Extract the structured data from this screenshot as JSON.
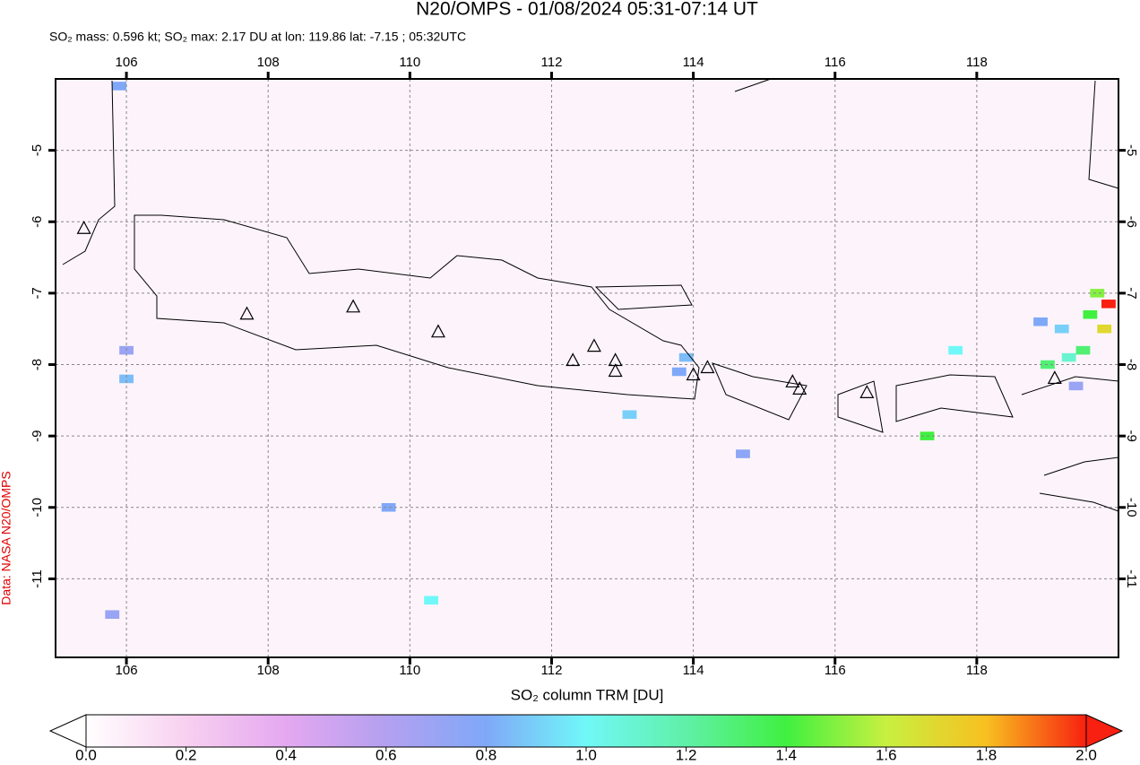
{
  "chart_data": {
    "type": "map",
    "title": "N20/OMPS - 01/08/2024 05:31-07:14 UT",
    "subtitle": "SO₂ mass: 0.596 kt; SO₂ max: 2.17 DU at lon: 119.86 lat: -7.15 ; 05:32UTC",
    "credit": "Data: NASA N20/OMPS",
    "colorbar_label": "SO₂ column TRM [DU]",
    "xlim": [
      105,
      120
    ],
    "ylim": [
      -12.1,
      -4
    ],
    "xticks": [
      106,
      108,
      110,
      112,
      114,
      116,
      118
    ],
    "yticks": [
      -5,
      -6,
      -7,
      -8,
      -9,
      -10,
      -11
    ],
    "grid": true,
    "clim": [
      0,
      2
    ],
    "cticks": [
      {
        "value": 0,
        "label": "0.0"
      },
      {
        "value": 0.2,
        "label": "0.2"
      },
      {
        "value": 0.4,
        "label": "0.4"
      },
      {
        "value": 0.6,
        "label": "0.6"
      },
      {
        "value": 0.8,
        "label": "0.8"
      },
      {
        "value": 1,
        "label": "1.0"
      },
      {
        "value": 1.2,
        "label": "1.2"
      },
      {
        "value": 1.4,
        "label": "1.4"
      },
      {
        "value": 1.6,
        "label": "1.6"
      },
      {
        "value": 1.8,
        "label": "1.8"
      },
      {
        "value": 2,
        "label": "2.0"
      }
    ],
    "colormap": [
      {
        "value": 0,
        "color": "#ffffff"
      },
      {
        "value": 0.2,
        "color": "#f8d0f0"
      },
      {
        "value": 0.4,
        "color": "#e4a8f0"
      },
      {
        "value": 0.6,
        "color": "#b4a0f0"
      },
      {
        "value": 0.8,
        "color": "#80a8f8"
      },
      {
        "value": 1,
        "color": "#70f8f8"
      },
      {
        "value": 1.2,
        "color": "#60f0a8"
      },
      {
        "value": 1.4,
        "color": "#40f040"
      },
      {
        "value": 1.6,
        "color": "#c8f040"
      },
      {
        "value": 1.8,
        "color": "#f8c020"
      },
      {
        "value": 2,
        "color": "#f82010"
      }
    ],
    "pixels": {
      "lon": [
        119.86,
        119.7,
        119.8,
        119.6,
        119.5,
        119.0,
        119.3,
        119.2,
        118.9,
        119.4,
        117.3,
        117.7,
        113.9,
        113.8,
        113.1,
        110.3,
        105.9,
        106.0,
        106.0,
        109.7,
        105.8,
        114.7
      ],
      "lat": [
        -7.15,
        -7.0,
        -7.5,
        -7.3,
        -7.8,
        -8.0,
        -7.9,
        -7.5,
        -7.4,
        -8.3,
        -9.0,
        -7.8,
        -7.9,
        -8.1,
        -8.7,
        -11.3,
        -4.1,
        -7.8,
        -8.2,
        -10.0,
        -11.5,
        -9.25
      ],
      "values": [
        2.17,
        1.5,
        1.7,
        1.4,
        1.3,
        1.3,
        1.1,
        0.9,
        0.8,
        0.7,
        1.4,
        1.0,
        0.85,
        0.8,
        0.9,
        1.0,
        0.8,
        0.7,
        0.85,
        0.8,
        0.7,
        0.75
      ]
    },
    "volcanoes": {
      "lon": [
        105.4,
        107.7,
        109.2,
        110.4,
        112.3,
        112.6,
        112.9,
        112.9,
        114.0,
        114.2,
        115.4,
        115.5,
        116.45,
        119.1
      ],
      "lat": [
        -6.1,
        -7.3,
        -7.2,
        -7.55,
        -7.95,
        -7.75,
        -7.95,
        -8.1,
        -8.15,
        -8.05,
        -8.25,
        -8.35,
        -8.4,
        -8.2
      ]
    }
  }
}
